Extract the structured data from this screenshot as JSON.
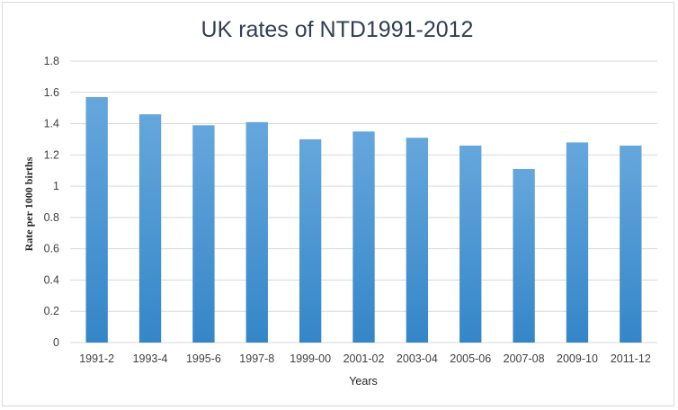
{
  "chart_data": {
    "type": "bar",
    "title": "UK rates of NTD1991-2012",
    "xlabel": "Years",
    "ylabel": "Rate per 1000 births",
    "categories": [
      "1991-2",
      "1993-4",
      "1995-6",
      "1997-8",
      "1999-00",
      "2001-02",
      "2003-04",
      "2005-06",
      "2007-08",
      "2009-10",
      "2011-12"
    ],
    "values": [
      1.57,
      1.46,
      1.39,
      1.41,
      1.3,
      1.35,
      1.31,
      1.26,
      1.11,
      1.28,
      1.26
    ],
    "ylim": [
      0,
      1.8
    ],
    "yticks": [
      "0",
      "0.2",
      "0.4",
      "0.6",
      "0.8",
      "1",
      "1.2",
      "1.4",
      "1.6",
      "1.8"
    ],
    "grid": true,
    "legend": "none",
    "colors": {
      "bar_top": "#65a7dc",
      "bar_bottom": "#3486c8",
      "grid": "#d9d9d9",
      "title": "#2f3e55"
    }
  }
}
